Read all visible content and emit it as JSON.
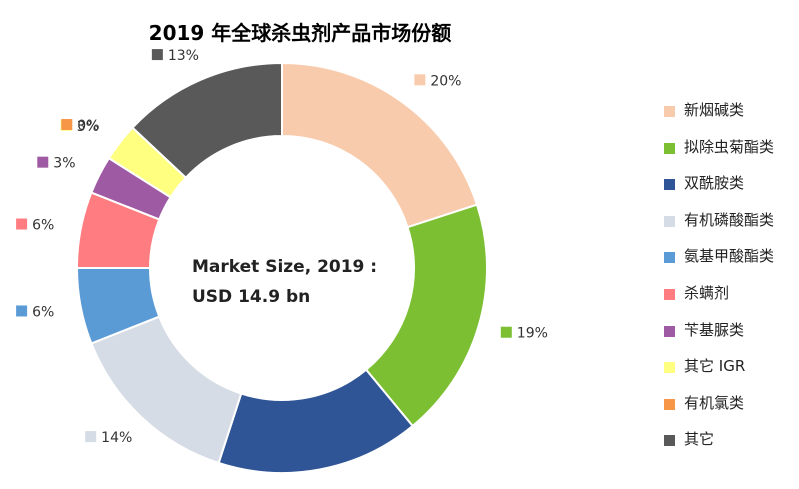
{
  "chart_data": {
    "type": "pie",
    "title": "2019 年全球杀虫剂产品市场份额",
    "center_label": [
      "Market Size, 2019 :",
      "USD 14.9 bn"
    ],
    "slices": [
      {
        "name": "新烟碱类",
        "value": 20,
        "label": "20%",
        "color": "#F8CBAD"
      },
      {
        "name": "拟除虫菊酯类",
        "value": 19,
        "label": "19%",
        "color": "#7CBF33"
      },
      {
        "name": "双酰胺类",
        "value": 16,
        "label": "16%",
        "color": "#2F5597"
      },
      {
        "name": "有机磷酸酯类",
        "value": 14,
        "label": "14%",
        "color": "#D6DCE5"
      },
      {
        "name": "氨基甲酸酯类",
        "value": 6,
        "label": "6%",
        "color": "#5B9BD5"
      },
      {
        "name": "杀螨剂",
        "value": 6,
        "label": "6%",
        "color": "#FF7C80"
      },
      {
        "name": "苄基脲类",
        "value": 3,
        "label": "3%",
        "color": "#9E5BA4"
      },
      {
        "name": "其它 IGR",
        "value": 3,
        "label": "3%",
        "color": "#FFFF80"
      },
      {
        "name": "有机氯类",
        "value": 0,
        "label": "0%",
        "color": "#F79646"
      },
      {
        "name": "其它",
        "value": 13,
        "label": "13%",
        "color": "#595959"
      }
    ],
    "legend_position": "right"
  }
}
